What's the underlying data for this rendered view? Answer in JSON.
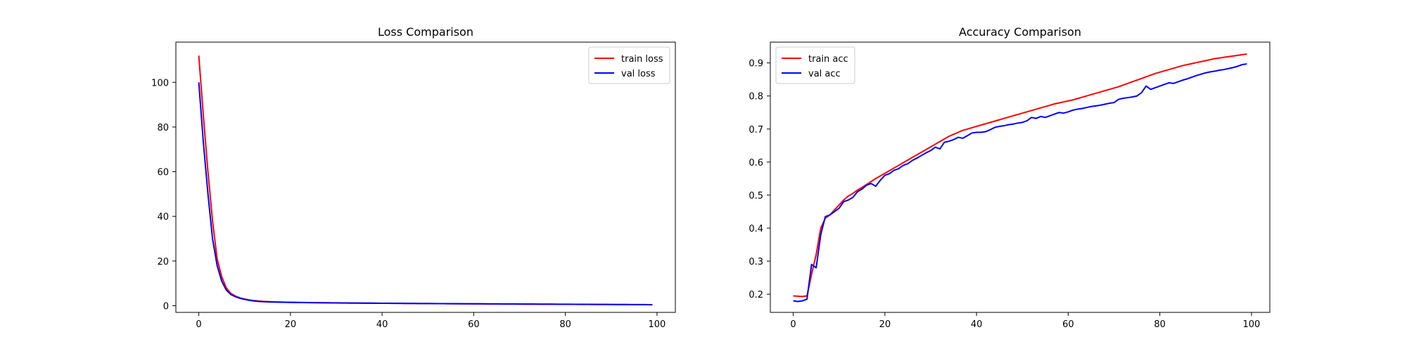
{
  "figure": {
    "background": "#ffffff"
  },
  "chart_data": [
    {
      "type": "line",
      "title": "Loss Comparison",
      "xlabel": "",
      "ylabel": "",
      "xlim": [
        -5,
        104
      ],
      "ylim": [
        -3,
        118
      ],
      "xticks": [
        0,
        20,
        40,
        60,
        80,
        100
      ],
      "yticks": [
        0,
        20,
        40,
        60,
        80,
        100
      ],
      "grid": false,
      "legend": {
        "placement": "top-right"
      },
      "series": [
        {
          "name": "train loss",
          "color": "#ff0000",
          "x": [
            0,
            1,
            2,
            3,
            4,
            5,
            6,
            7,
            8,
            9,
            10,
            11,
            12,
            13,
            14,
            15,
            16,
            17,
            18,
            19,
            20,
            21,
            22,
            23,
            24,
            25,
            26,
            27,
            28,
            29,
            30,
            31,
            32,
            33,
            34,
            35,
            36,
            37,
            38,
            39,
            40,
            41,
            42,
            43,
            44,
            45,
            46,
            47,
            48,
            49,
            50,
            51,
            52,
            53,
            54,
            55,
            56,
            57,
            58,
            59,
            60,
            61,
            62,
            63,
            64,
            65,
            66,
            67,
            68,
            69,
            70,
            71,
            72,
            73,
            74,
            75,
            76,
            77,
            78,
            79,
            80,
            81,
            82,
            83,
            84,
            85,
            86,
            87,
            88,
            89,
            90,
            91,
            92,
            93,
            94,
            95,
            96,
            97,
            98,
            99
          ],
          "y": [
            112,
            85,
            60,
            38,
            21,
            13,
            8,
            5.5,
            4.3,
            3.5,
            3.0,
            2.6,
            2.3,
            2.1,
            1.95,
            1.85,
            1.75,
            1.68,
            1.62,
            1.57,
            1.53,
            1.5,
            1.47,
            1.44,
            1.41,
            1.38,
            1.36,
            1.34,
            1.32,
            1.3,
            1.28,
            1.26,
            1.24,
            1.22,
            1.2,
            1.18,
            1.17,
            1.15,
            1.13,
            1.12,
            1.1,
            1.08,
            1.07,
            1.05,
            1.04,
            1.02,
            1.01,
            0.99,
            0.98,
            0.96,
            0.95,
            0.94,
            0.92,
            0.91,
            0.9,
            0.88,
            0.87,
            0.86,
            0.85,
            0.83,
            0.82,
            0.81,
            0.8,
            0.79,
            0.78,
            0.77,
            0.76,
            0.75,
            0.74,
            0.73,
            0.72,
            0.71,
            0.7,
            0.69,
            0.68,
            0.67,
            0.66,
            0.65,
            0.64,
            0.63,
            0.62,
            0.61,
            0.6,
            0.59,
            0.58,
            0.57,
            0.56,
            0.55,
            0.54,
            0.53,
            0.52,
            0.51,
            0.5,
            0.49,
            0.48,
            0.47,
            0.46,
            0.45,
            0.44,
            0.43
          ]
        },
        {
          "name": "val loss",
          "color": "#0000ff",
          "x": [
            0,
            1,
            2,
            3,
            4,
            5,
            6,
            7,
            8,
            9,
            10,
            11,
            12,
            13,
            14,
            15,
            16,
            17,
            18,
            19,
            20,
            21,
            22,
            23,
            24,
            25,
            26,
            27,
            28,
            29,
            30,
            31,
            32,
            33,
            34,
            35,
            36,
            37,
            38,
            39,
            40,
            41,
            42,
            43,
            44,
            45,
            46,
            47,
            48,
            49,
            50,
            51,
            52,
            53,
            54,
            55,
            56,
            57,
            58,
            59,
            60,
            61,
            62,
            63,
            64,
            65,
            66,
            67,
            68,
            69,
            70,
            71,
            72,
            73,
            74,
            75,
            76,
            77,
            78,
            79,
            80,
            81,
            82,
            83,
            84,
            85,
            86,
            87,
            88,
            89,
            90,
            91,
            92,
            93,
            94,
            95,
            96,
            97,
            98,
            99
          ],
          "y": [
            100,
            73,
            50,
            30,
            18,
            11,
            7,
            5,
            4,
            3.3,
            2.8,
            2.4,
            2.1,
            1.9,
            1.8,
            1.7,
            1.65,
            1.6,
            1.55,
            1.5,
            1.47,
            1.44,
            1.41,
            1.38,
            1.35,
            1.33,
            1.31,
            1.29,
            1.27,
            1.25,
            1.23,
            1.21,
            1.2,
            1.18,
            1.17,
            1.15,
            1.14,
            1.12,
            1.11,
            1.1,
            1.08,
            1.07,
            1.06,
            1.04,
            1.03,
            1.02,
            1.01,
            0.99,
            0.98,
            0.97,
            0.96,
            0.95,
            0.94,
            0.92,
            0.91,
            0.9,
            0.89,
            0.88,
            0.87,
            0.86,
            0.85,
            0.84,
            0.83,
            0.82,
            0.81,
            0.8,
            0.79,
            0.78,
            0.77,
            0.76,
            0.75,
            0.74,
            0.73,
            0.72,
            0.71,
            0.7,
            0.69,
            0.68,
            0.67,
            0.66,
            0.65,
            0.64,
            0.63,
            0.62,
            0.61,
            0.6,
            0.59,
            0.58,
            0.57,
            0.56,
            0.55,
            0.54,
            0.53,
            0.52,
            0.51,
            0.5,
            0.49,
            0.48,
            0.47,
            0.46
          ]
        }
      ]
    },
    {
      "type": "line",
      "title": "Accuracy Comparison",
      "xlabel": "",
      "ylabel": "",
      "xlim": [
        -5,
        104
      ],
      "ylim": [
        0.145,
        0.963
      ],
      "xticks": [
        0,
        20,
        40,
        60,
        80,
        100
      ],
      "yticks": [
        0.2,
        0.3,
        0.4,
        0.5,
        0.6,
        0.7,
        0.8,
        0.9
      ],
      "grid": false,
      "legend": {
        "placement": "top-left"
      },
      "series": [
        {
          "name": "train acc",
          "color": "#ff0000",
          "x": [
            0,
            1,
            2,
            3,
            4,
            5,
            6,
            7,
            8,
            9,
            10,
            11,
            12,
            13,
            14,
            15,
            16,
            17,
            18,
            19,
            20,
            21,
            22,
            23,
            24,
            25,
            26,
            27,
            28,
            29,
            30,
            31,
            32,
            33,
            34,
            35,
            36,
            37,
            38,
            39,
            40,
            41,
            42,
            43,
            44,
            45,
            46,
            47,
            48,
            49,
            50,
            51,
            52,
            53,
            54,
            55,
            56,
            57,
            58,
            59,
            60,
            61,
            62,
            63,
            64,
            65,
            66,
            67,
            68,
            69,
            70,
            71,
            72,
            73,
            74,
            75,
            76,
            77,
            78,
            79,
            80,
            81,
            82,
            83,
            84,
            85,
            86,
            87,
            88,
            89,
            90,
            91,
            92,
            93,
            94,
            95,
            96,
            97,
            98,
            99
          ],
          "y": [
            0.195,
            0.194,
            0.193,
            0.195,
            0.26,
            0.32,
            0.4,
            0.43,
            0.44,
            0.455,
            0.47,
            0.485,
            0.497,
            0.505,
            0.515,
            0.523,
            0.532,
            0.541,
            0.55,
            0.558,
            0.566,
            0.574,
            0.582,
            0.59,
            0.598,
            0.606,
            0.614,
            0.622,
            0.63,
            0.638,
            0.646,
            0.654,
            0.662,
            0.67,
            0.678,
            0.684,
            0.69,
            0.696,
            0.7,
            0.704,
            0.708,
            0.712,
            0.716,
            0.72,
            0.724,
            0.728,
            0.732,
            0.736,
            0.74,
            0.744,
            0.748,
            0.752,
            0.756,
            0.76,
            0.764,
            0.768,
            0.772,
            0.776,
            0.779,
            0.782,
            0.785,
            0.788,
            0.792,
            0.796,
            0.8,
            0.804,
            0.808,
            0.812,
            0.816,
            0.82,
            0.824,
            0.828,
            0.833,
            0.838,
            0.843,
            0.848,
            0.853,
            0.858,
            0.863,
            0.868,
            0.872,
            0.876,
            0.88,
            0.884,
            0.888,
            0.892,
            0.895,
            0.898,
            0.901,
            0.904,
            0.907,
            0.91,
            0.913,
            0.915,
            0.917,
            0.919,
            0.921,
            0.923,
            0.925,
            0.927
          ]
        },
        {
          "name": "val acc",
          "color": "#0000ff",
          "x": [
            0,
            1,
            2,
            3,
            4,
            5,
            6,
            7,
            8,
            9,
            10,
            11,
            12,
            13,
            14,
            15,
            16,
            17,
            18,
            19,
            20,
            21,
            22,
            23,
            24,
            25,
            26,
            27,
            28,
            29,
            30,
            31,
            32,
            33,
            34,
            35,
            36,
            37,
            38,
            39,
            40,
            41,
            42,
            43,
            44,
            45,
            46,
            47,
            48,
            49,
            50,
            51,
            52,
            53,
            54,
            55,
            56,
            57,
            58,
            59,
            60,
            61,
            62,
            63,
            64,
            65,
            66,
            67,
            68,
            69,
            70,
            71,
            72,
            73,
            74,
            75,
            76,
            77,
            78,
            79,
            80,
            81,
            82,
            83,
            84,
            85,
            86,
            87,
            88,
            89,
            90,
            91,
            92,
            93,
            94,
            95,
            96,
            97,
            98,
            99
          ],
          "y": [
            0.18,
            0.178,
            0.18,
            0.185,
            0.29,
            0.28,
            0.38,
            0.435,
            0.44,
            0.45,
            0.46,
            0.48,
            0.485,
            0.493,
            0.51,
            0.518,
            0.53,
            0.535,
            0.527,
            0.545,
            0.56,
            0.565,
            0.575,
            0.58,
            0.59,
            0.595,
            0.605,
            0.612,
            0.62,
            0.628,
            0.635,
            0.645,
            0.64,
            0.66,
            0.663,
            0.668,
            0.675,
            0.672,
            0.68,
            0.688,
            0.69,
            0.69,
            0.692,
            0.698,
            0.705,
            0.708,
            0.71,
            0.713,
            0.715,
            0.718,
            0.72,
            0.725,
            0.735,
            0.732,
            0.738,
            0.735,
            0.74,
            0.745,
            0.75,
            0.748,
            0.752,
            0.757,
            0.76,
            0.762,
            0.765,
            0.768,
            0.77,
            0.772,
            0.775,
            0.778,
            0.78,
            0.79,
            0.793,
            0.795,
            0.797,
            0.8,
            0.81,
            0.83,
            0.82,
            0.825,
            0.83,
            0.835,
            0.84,
            0.838,
            0.843,
            0.848,
            0.852,
            0.857,
            0.862,
            0.866,
            0.87,
            0.873,
            0.875,
            0.878,
            0.88,
            0.883,
            0.886,
            0.89,
            0.895,
            0.897
          ]
        }
      ]
    }
  ]
}
